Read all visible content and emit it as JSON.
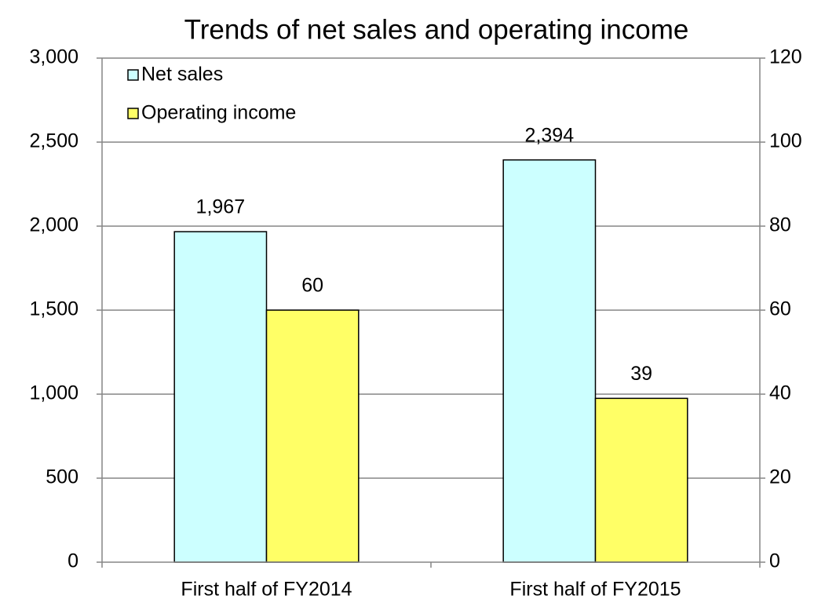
{
  "chart_data": {
    "type": "bar",
    "title": "Trends of net sales and operating income",
    "categories": [
      "First half of FY2014",
      "First half of FY2015"
    ],
    "series": [
      {
        "name": "Net sales",
        "color": "#ccffff",
        "values": [
          1967,
          2394
        ],
        "value_labels": [
          "1,967",
          "2,394"
        ]
      },
      {
        "name": "Operating income",
        "color": "#ffff66",
        "values": [
          60,
          39
        ],
        "axis": "y2"
      }
    ],
    "ylim": [
      0,
      3000
    ],
    "yticks": [
      0,
      {
        "value": 500,
        "label": "500"
      },
      {
        "value": 1000,
        "label": "1,000"
      },
      {
        "value": 1500,
        "label": "1,500"
      },
      {
        "value": 2000,
        "label": "2,000"
      },
      {
        "value": 2500,
        "label": "2,500"
      },
      {
        "value": 3000,
        "label": "3,000"
      }
    ],
    "y2lim": [
      0,
      120
    ],
    "y2ticks": [
      0,
      20,
      40,
      60,
      80,
      100,
      120
    ],
    "grid": true,
    "legend": "top-left"
  }
}
